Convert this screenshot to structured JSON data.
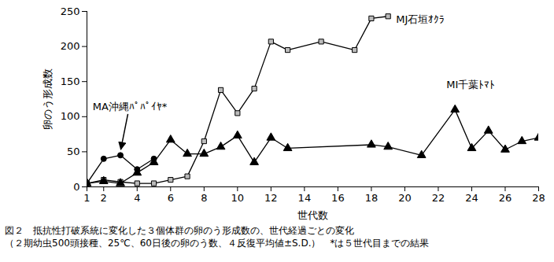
{
  "chart_data": {
    "type": "line",
    "xlabel": "世代数",
    "ylabel": "卵のう形成数",
    "xlim": [
      1,
      28
    ],
    "xticks": [
      1,
      2,
      4,
      6,
      8,
      10,
      12,
      14,
      16,
      18,
      20,
      22,
      24,
      26,
      28
    ],
    "ylim": [
      0,
      250
    ],
    "yticks": [
      0,
      50,
      100,
      150,
      200,
      250
    ],
    "grid": false,
    "caption": [
      "図２　抵抗性打破系統に変化した３個体群の卵のう形成数の、世代経過ごとの変化",
      "（２期幼虫500頭接種、25℃、60日後の卵のう数、４反復平均値±S.D.）　*は５世代目までの結果"
    ],
    "series": [
      {
        "name": "MJ石垣ｵｸﾗ",
        "color": "#000000",
        "marker": "square",
        "x": [
          1,
          2,
          3,
          4,
          5,
          6,
          7,
          8,
          9,
          10,
          11,
          12,
          13,
          15,
          17,
          18,
          19
        ],
        "values": [
          5,
          10,
          7,
          5,
          5,
          10,
          15,
          65,
          138,
          105,
          140,
          207,
          195,
          207,
          195,
          240,
          243
        ]
      },
      {
        "name": "MA沖縄ﾊﾟﾊﾟｲﾔ*",
        "color": "#000000",
        "marker": "circle",
        "x": [
          1,
          2,
          3,
          4,
          5
        ],
        "values": [
          5,
          40,
          45,
          25,
          40
        ]
      },
      {
        "name": "MI千葉ﾄﾏﾄ",
        "color": "#000000",
        "marker": "triangle",
        "x": [
          1,
          2,
          3,
          4,
          5,
          6,
          7,
          8,
          9,
          10,
          11,
          12,
          13,
          18,
          19,
          21,
          23,
          24,
          25,
          26,
          27,
          28
        ],
        "values": [
          5,
          8,
          5,
          20,
          35,
          67,
          47,
          47,
          57,
          73,
          35,
          70,
          55,
          60,
          57,
          45,
          110,
          55,
          80,
          53,
          65,
          70
        ]
      }
    ]
  }
}
